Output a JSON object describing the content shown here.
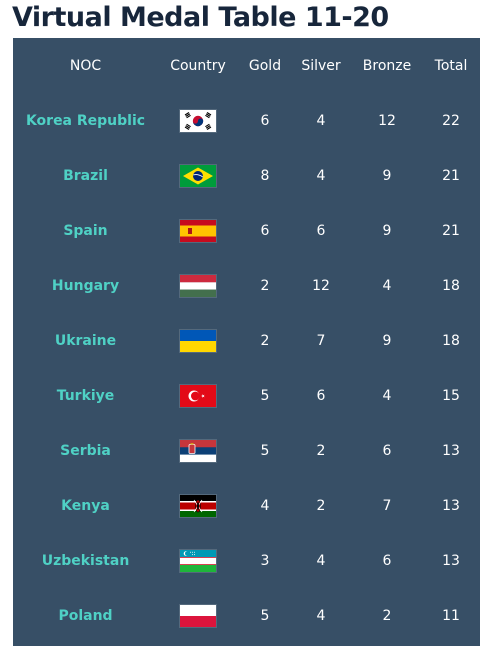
{
  "title": "Virtual Medal Table 11-20",
  "headers": {
    "noc": "NOC",
    "country": "Country",
    "gold": "Gold",
    "silver": "Silver",
    "bronze": "Bronze",
    "total": "Total"
  },
  "rows": [
    {
      "noc": "Korea Republic",
      "flag": "korea-flag",
      "gold": "6",
      "silver": "4",
      "bronze": "12",
      "total": "22"
    },
    {
      "noc": "Brazil",
      "flag": "brazil-flag",
      "gold": "8",
      "silver": "4",
      "bronze": "9",
      "total": "21"
    },
    {
      "noc": "Spain",
      "flag": "spain-flag",
      "gold": "6",
      "silver": "6",
      "bronze": "9",
      "total": "21"
    },
    {
      "noc": "Hungary",
      "flag": "hungary-flag",
      "gold": "2",
      "silver": "12",
      "bronze": "4",
      "total": "18"
    },
    {
      "noc": "Ukraine",
      "flag": "ukraine-flag",
      "gold": "2",
      "silver": "7",
      "bronze": "9",
      "total": "18"
    },
    {
      "noc": "Turkiye",
      "flag": "turkiye-flag",
      "gold": "5",
      "silver": "6",
      "bronze": "4",
      "total": "15"
    },
    {
      "noc": "Serbia",
      "flag": "serbia-flag",
      "gold": "5",
      "silver": "2",
      "bronze": "6",
      "total": "13"
    },
    {
      "noc": "Kenya",
      "flag": "kenya-flag",
      "gold": "4",
      "silver": "2",
      "bronze": "7",
      "total": "13"
    },
    {
      "noc": "Uzbekistan",
      "flag": "uzbekistan-flag",
      "gold": "3",
      "silver": "4",
      "bronze": "6",
      "total": "13"
    },
    {
      "noc": "Poland",
      "flag": "poland-flag",
      "gold": "5",
      "silver": "4",
      "bronze": "2",
      "total": "11"
    }
  ],
  "colors": {
    "panel": "#374f66",
    "noc_text": "#4fd1c5",
    "title": "#17263b"
  }
}
